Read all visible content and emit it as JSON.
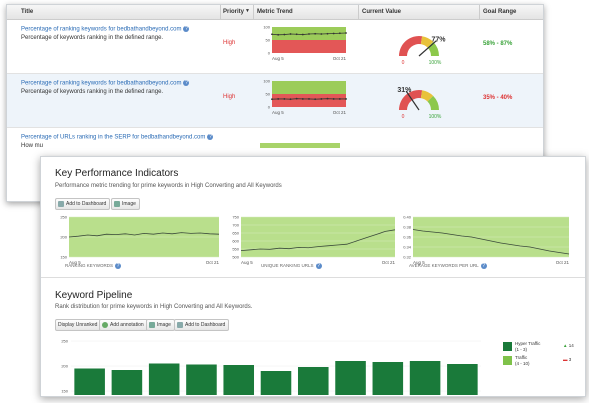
{
  "table": {
    "headers": {
      "title": "Title",
      "priority": "Priority",
      "trend": "Metric Trend",
      "current": "Current Value",
      "goal": "Goal Range"
    },
    "sort_icon": "triangle-down-icon",
    "rows": [
      {
        "link": "Percentage of ranking keywords for bedbathandbeyond.com",
        "desc": "Percentage of keywords ranking in the defined range.",
        "priority": "High",
        "trend": {
          "ticks": [
            "100",
            "50",
            "0"
          ],
          "start": "Aug 5",
          "end": "Oct 21",
          "values": [
            72,
            70,
            71,
            73,
            72,
            71,
            73,
            74,
            73,
            74,
            75,
            76,
            77
          ]
        },
        "gauge": {
          "value": 0.77,
          "value_label": "77%",
          "min": "0",
          "max": "100%"
        },
        "goal": "58% - 87%",
        "goal_color": "#3aa33a"
      },
      {
        "link": "Percentage of ranking keywords for bedbathandbeyond.com",
        "desc": "Percentage of keywords ranking in the defined range.",
        "priority": "High",
        "trend": {
          "ticks": [
            "100",
            "50",
            "0"
          ],
          "start": "Aug 5",
          "end": "Oct 21",
          "values": [
            30,
            31,
            31,
            30,
            32,
            31,
            31,
            30,
            31,
            32,
            31,
            31,
            31
          ]
        },
        "gauge": {
          "value": 0.31,
          "value_label": "31%",
          "min": "0",
          "max": "100%"
        },
        "goal": "35% - 40%",
        "goal_color": "#d33"
      },
      {
        "link": "Percentage of URLs ranking in the SERP for bedbathandbeyond.com",
        "desc": "How mu"
      }
    ]
  },
  "kpi": {
    "title": "Key Performance Indicators",
    "subtitle": "Performance metric trending for prime keywords in High Converting and All Keywords",
    "buttons": [
      "Add to Dashboard",
      "Image"
    ],
    "charts": [
      {
        "caption": "RANKING KEYWORDS",
        "ticks": [
          "250",
          "200",
          "150"
        ],
        "start": "Aug 5",
        "end": "Oct 21",
        "values": [
          200,
          202,
          205,
          203,
          207,
          206,
          208,
          205,
          209,
          207,
          210,
          208,
          211,
          209,
          210,
          208,
          207
        ]
      },
      {
        "caption": "UNIQUE RANKING URLS",
        "ticks": [
          "750",
          "700",
          "650",
          "600",
          "550",
          "500"
        ],
        "start": "Aug 5",
        "end": "Oct 21",
        "values": [
          540,
          545,
          550,
          548,
          555,
          552,
          560,
          558,
          565,
          570,
          575,
          580,
          600,
          620,
          640,
          660,
          670
        ]
      },
      {
        "caption": "AVERAGE KEYWORDS PER URL",
        "ticks": [
          "0.40",
          "0.38",
          "0.36",
          "0.34",
          "0.32"
        ],
        "start": "Aug 5",
        "end": "Oct 21",
        "values": [
          0.375,
          0.372,
          0.37,
          0.368,
          0.365,
          0.362,
          0.36,
          0.356,
          0.352,
          0.348,
          0.345,
          0.342,
          0.34,
          0.336,
          0.332,
          0.329,
          0.326
        ]
      }
    ]
  },
  "pipeline": {
    "title": "Keyword Pipeline",
    "subtitle": "Rank distribution for prime keywords in High Converting and All Keywords.",
    "buttons": [
      "Display Unranked",
      "Add annotation",
      "Image",
      "Add to Dashboard"
    ],
    "ticks": [
      "250",
      "200",
      "150"
    ],
    "bars": [
      195,
      192,
      205,
      203,
      202,
      190,
      198,
      210,
      208,
      210,
      204
    ],
    "legend": [
      {
        "name": "Hyper Traffic",
        "range": "(1 - 3)",
        "color": "#1a7a3a",
        "stat": "14",
        "stat_icon": "arrow-up-icon",
        "stat_color": "#3aa33a"
      },
      {
        "name": "Traffic",
        "range": "(4 - 10)",
        "color": "#7fc24a",
        "stat": "3",
        "stat_icon": "arrow-down-icon",
        "stat_color": "#d33"
      }
    ]
  }
}
